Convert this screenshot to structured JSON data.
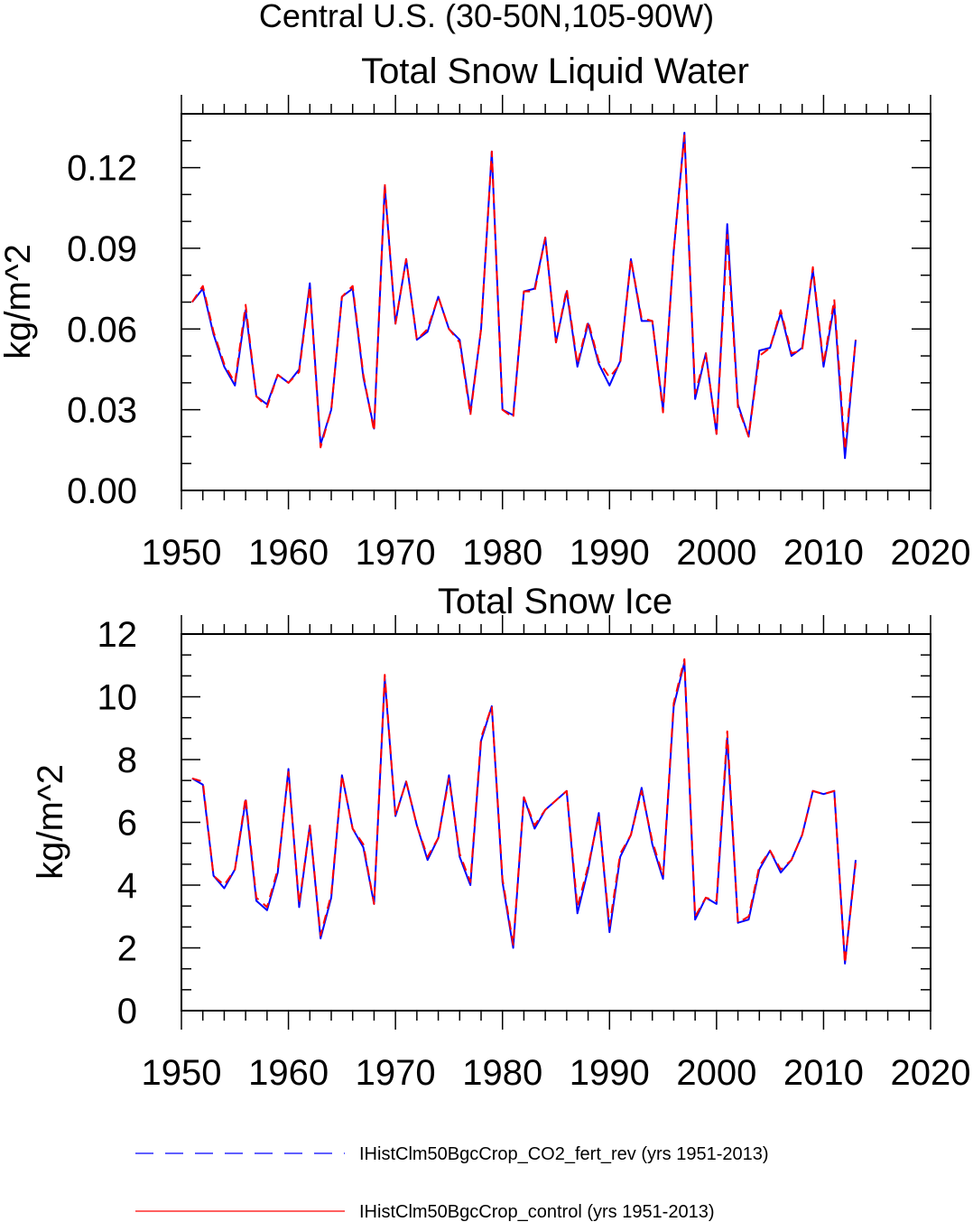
{
  "page_title": "Central U.S. (30-50N,105-90W)",
  "colors": {
    "series1": "#0000ff",
    "series2": "#ff0000",
    "axis": "#000000"
  },
  "legend": [
    {
      "label": "IHistClm50BgcCrop_CO2_fert_rev (yrs 1951-2013)",
      "color": "#0000ff",
      "style": "dashed"
    },
    {
      "label": "IHistClm50BgcCrop_control (yrs 1951-2013)",
      "color": "#ff0000",
      "style": "solid"
    }
  ],
  "chart_data": [
    {
      "type": "line",
      "title": "Total Snow Liquid Water",
      "ylabel": "kg/m^2",
      "xlabel": "",
      "xlim": [
        1950,
        2020
      ],
      "ylim": [
        0,
        0.14
      ],
      "xticks": [
        "1950",
        "1960",
        "1970",
        "1980",
        "1990",
        "2000",
        "2010",
        "2020"
      ],
      "yticks": [
        "0.00",
        "0.03",
        "0.06",
        "0.09",
        "0.12"
      ],
      "grid": false,
      "x_start": 1951,
      "series": [
        {
          "name": "IHistClm50BgcCrop_CO2_fert_rev (yrs 1951-2013)",
          "color": "#0000ff",
          "style": "dashed",
          "values": [
            0.07,
            0.075,
            0.058,
            0.046,
            0.039,
            0.067,
            0.035,
            0.032,
            0.043,
            0.04,
            0.045,
            0.077,
            0.017,
            0.03,
            0.072,
            0.075,
            0.042,
            0.023,
            0.113,
            0.062,
            0.086,
            0.056,
            0.059,
            0.072,
            0.06,
            0.056,
            0.029,
            0.06,
            0.126,
            0.03,
            0.028,
            0.074,
            0.075,
            0.094,
            0.055,
            0.074,
            0.046,
            0.062,
            0.047,
            0.039,
            0.048,
            0.086,
            0.063,
            0.063,
            0.03,
            0.089,
            0.133,
            0.034,
            0.051,
            0.021,
            0.099,
            0.032,
            0.02,
            0.052,
            0.053,
            0.066,
            0.05,
            0.053,
            0.082,
            0.046,
            0.069,
            0.012,
            0.056
          ]
        },
        {
          "name": "IHistClm50BgcCrop_control (yrs 1951-2013)",
          "color": "#ff0000",
          "style": "solid",
          "values": [
            0.07,
            0.076,
            0.059,
            0.047,
            0.04,
            0.069,
            0.035,
            0.031,
            0.043,
            0.04,
            0.044,
            0.076,
            0.016,
            0.03,
            0.072,
            0.076,
            0.043,
            0.022,
            0.114,
            0.062,
            0.086,
            0.056,
            0.06,
            0.072,
            0.06,
            0.055,
            0.028,
            0.06,
            0.126,
            0.03,
            0.027,
            0.074,
            0.074,
            0.094,
            0.055,
            0.075,
            0.047,
            0.063,
            0.048,
            0.042,
            0.047,
            0.086,
            0.064,
            0.063,
            0.029,
            0.089,
            0.132,
            0.036,
            0.051,
            0.021,
            0.095,
            0.031,
            0.02,
            0.05,
            0.053,
            0.067,
            0.051,
            0.052,
            0.083,
            0.047,
            0.071,
            0.015,
            0.056
          ]
        }
      ]
    },
    {
      "type": "line",
      "title": "Total Snow Ice",
      "ylabel": "kg/m^2",
      "xlabel": "",
      "xlim": [
        1950,
        2020
      ],
      "ylim": [
        0,
        12
      ],
      "xticks": [
        "1950",
        "1960",
        "1970",
        "1980",
        "1990",
        "2000",
        "2010",
        "2020"
      ],
      "yticks": [
        "0",
        "2",
        "4",
        "6",
        "8",
        "10",
        "12"
      ],
      "grid": false,
      "x_start": 1951,
      "series": [
        {
          "name": "IHistClm50BgcCrop_CO2_fert_rev (yrs 1951-2013)",
          "color": "#0000ff",
          "style": "dashed",
          "values": [
            7.4,
            7.2,
            4.3,
            3.9,
            4.5,
            6.7,
            3.5,
            3.2,
            4.4,
            7.7,
            3.3,
            5.9,
            2.3,
            3.6,
            7.5,
            5.8,
            5.2,
            3.4,
            10.6,
            6.2,
            7.3,
            5.9,
            4.8,
            5.5,
            7.5,
            4.9,
            4.0,
            8.6,
            9.7,
            4.1,
            2.0,
            6.8,
            5.8,
            6.4,
            6.7,
            7.0,
            3.1,
            4.5,
            6.3,
            2.5,
            4.9,
            5.6,
            7.1,
            5.3,
            4.2,
            9.7,
            11.1,
            2.9,
            3.6,
            3.4,
            8.7,
            2.8,
            2.9,
            4.5,
            5.1,
            4.4,
            4.8,
            5.6,
            7.0,
            6.9,
            7.0,
            1.5,
            4.8
          ]
        },
        {
          "name": "IHistClm50BgcCrop_control (yrs 1951-2013)",
          "color": "#ff0000",
          "style": "solid",
          "values": [
            7.4,
            7.3,
            4.3,
            4.0,
            4.5,
            6.8,
            3.6,
            3.3,
            4.5,
            7.6,
            3.4,
            5.9,
            2.4,
            3.7,
            7.5,
            5.8,
            5.3,
            3.4,
            10.7,
            6.2,
            7.3,
            5.9,
            4.9,
            5.5,
            7.4,
            5.0,
            4.1,
            8.7,
            9.7,
            4.2,
            2.1,
            6.8,
            5.9,
            6.4,
            6.7,
            7.0,
            3.3,
            4.6,
            6.2,
            2.7,
            5.0,
            5.6,
            7.0,
            5.4,
            4.3,
            9.8,
            11.2,
            3.0,
            3.6,
            3.5,
            8.9,
            2.8,
            3.0,
            4.6,
            5.1,
            4.5,
            4.8,
            5.6,
            7.0,
            6.9,
            7.0,
            1.5,
            4.7
          ]
        }
      ]
    }
  ]
}
